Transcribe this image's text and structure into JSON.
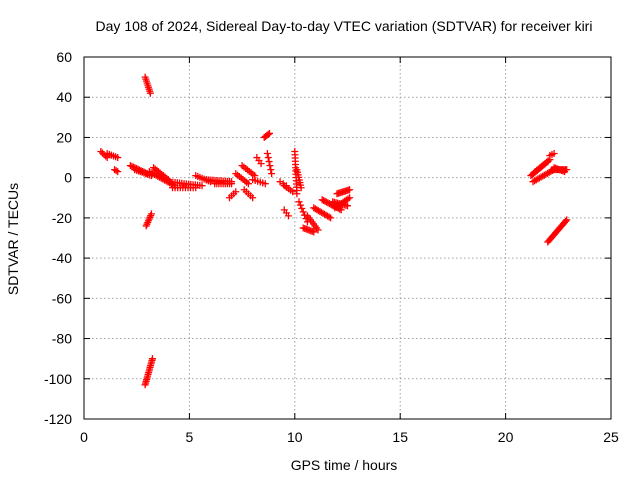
{
  "chart_data": {
    "type": "scatter",
    "title": "Day 108 of 2024, Sidereal Day-to-day VTEC variation (SDTVAR) for receiver kiri",
    "xlabel": "GPS time / hours",
    "ylabel": "SDTVAR / TECUs",
    "xlim": [
      0,
      25
    ],
    "ylim": [
      -120,
      60
    ],
    "x_ticks": [
      0,
      5,
      10,
      15,
      20,
      25
    ],
    "x_tick_labels": [
      "0",
      "5",
      "10",
      "15",
      "20",
      "25"
    ],
    "y_ticks": [
      60,
      40,
      20,
      0,
      -20,
      -40,
      -60,
      -80,
      -100,
      -120
    ],
    "y_tick_labels": [
      "60",
      "40",
      "20",
      "0",
      "-20",
      "-40",
      "-60",
      "-80",
      "-100",
      "-120"
    ],
    "grid": true,
    "marker": "plus",
    "color": "#ff0000",
    "segments": [
      {
        "x0": 0.8,
        "y0": 13,
        "x1": 1.1,
        "y1": 10,
        "n": 5
      },
      {
        "x0": 1.1,
        "y0": 12,
        "x1": 1.6,
        "y1": 10,
        "n": 6
      },
      {
        "x0": 1.45,
        "y0": 4,
        "x1": 1.6,
        "y1": 3,
        "n": 3
      },
      {
        "x0": 2.2,
        "y0": 6,
        "x1": 3.0,
        "y1": 2,
        "n": 12
      },
      {
        "x0": 2.4,
        "y0": 4,
        "x1": 3.2,
        "y1": 1,
        "n": 10
      },
      {
        "x0": 2.9,
        "y0": 50,
        "x1": 3.15,
        "y1": 42,
        "n": 9
      },
      {
        "x0": 2.95,
        "y0": -24,
        "x1": 3.2,
        "y1": -18,
        "n": 8
      },
      {
        "x0": 2.9,
        "y0": -103,
        "x1": 3.25,
        "y1": -90,
        "n": 16
      },
      {
        "x0": 3.1,
        "y0": 3,
        "x1": 4.3,
        "y1": -4,
        "n": 16
      },
      {
        "x0": 3.3,
        "y0": 5,
        "x1": 4.0,
        "y1": -1,
        "n": 10
      },
      {
        "x0": 4.0,
        "y0": -2,
        "x1": 5.6,
        "y1": -4,
        "n": 16
      },
      {
        "x0": 4.2,
        "y0": -5,
        "x1": 5.3,
        "y1": -5,
        "n": 10
      },
      {
        "x0": 5.3,
        "y0": 1,
        "x1": 6.0,
        "y1": -2,
        "n": 8
      },
      {
        "x0": 5.8,
        "y0": -1,
        "x1": 7.0,
        "y1": -2,
        "n": 14
      },
      {
        "x0": 6.2,
        "y0": -3,
        "x1": 7.0,
        "y1": -3,
        "n": 9
      },
      {
        "x0": 6.9,
        "y0": -10,
        "x1": 7.2,
        "y1": -7,
        "n": 4
      },
      {
        "x0": 7.2,
        "y0": 2,
        "x1": 7.8,
        "y1": -3,
        "n": 8
      },
      {
        "x0": 7.5,
        "y0": 6,
        "x1": 8.1,
        "y1": 1,
        "n": 8
      },
      {
        "x0": 7.6,
        "y0": -6,
        "x1": 8.0,
        "y1": -10,
        "n": 5
      },
      {
        "x0": 8.0,
        "y0": -1,
        "x1": 8.6,
        "y1": -3,
        "n": 6
      },
      {
        "x0": 8.2,
        "y0": 10,
        "x1": 8.4,
        "y1": 7,
        "n": 3
      },
      {
        "x0": 8.55,
        "y0": 20,
        "x1": 8.8,
        "y1": 22,
        "n": 5
      },
      {
        "x0": 8.7,
        "y0": 12,
        "x1": 8.9,
        "y1": 2,
        "n": 6
      },
      {
        "x0": 9.3,
        "y0": -2,
        "x1": 9.6,
        "y1": -4,
        "n": 3
      },
      {
        "x0": 9.5,
        "y0": -4,
        "x1": 9.9,
        "y1": -7,
        "n": 5
      },
      {
        "x0": 9.5,
        "y0": -16,
        "x1": 9.7,
        "y1": -19,
        "n": 3
      },
      {
        "x0": 10.0,
        "y0": 13,
        "x1": 10.1,
        "y1": -8,
        "n": 14
      },
      {
        "x0": 10.1,
        "y0": 4,
        "x1": 10.3,
        "y1": -5,
        "n": 8
      },
      {
        "x0": 10.2,
        "y0": -12,
        "x1": 10.6,
        "y1": -22,
        "n": 7
      },
      {
        "x0": 10.4,
        "y0": -25,
        "x1": 10.9,
        "y1": -27,
        "n": 8
      },
      {
        "x0": 10.6,
        "y0": -19,
        "x1": 11.1,
        "y1": -26,
        "n": 8
      },
      {
        "x0": 10.9,
        "y0": -15,
        "x1": 11.7,
        "y1": -20,
        "n": 12
      },
      {
        "x0": 11.3,
        "y0": -11,
        "x1": 12.2,
        "y1": -16,
        "n": 14
      },
      {
        "x0": 11.8,
        "y0": -12,
        "x1": 12.5,
        "y1": -14,
        "n": 10
      },
      {
        "x0": 12.0,
        "y0": -8,
        "x1": 12.6,
        "y1": -6,
        "n": 10
      },
      {
        "x0": 11.9,
        "y0": -15,
        "x1": 12.6,
        "y1": -10,
        "n": 10
      },
      {
        "x0": 21.2,
        "y0": 1,
        "x1": 22.0,
        "y1": 8,
        "n": 14
      },
      {
        "x0": 21.3,
        "y0": -2,
        "x1": 22.3,
        "y1": 4,
        "n": 14
      },
      {
        "x0": 21.4,
        "y0": 3,
        "x1": 22.1,
        "y1": 9,
        "n": 10
      },
      {
        "x0": 22.1,
        "y0": 11,
        "x1": 22.3,
        "y1": 12,
        "n": 3
      },
      {
        "x0": 22.2,
        "y0": 4,
        "x1": 22.9,
        "y1": 4,
        "n": 12
      },
      {
        "x0": 22.3,
        "y0": 5,
        "x1": 22.8,
        "y1": 3,
        "n": 8
      },
      {
        "x0": 22.0,
        "y0": -32,
        "x1": 22.9,
        "y1": -21,
        "n": 18
      }
    ]
  }
}
